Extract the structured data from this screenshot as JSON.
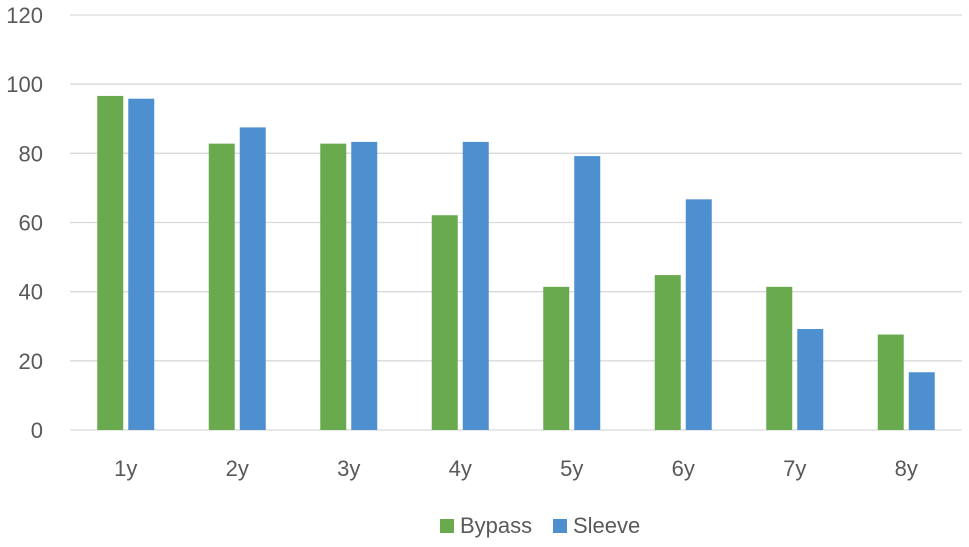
{
  "colors": {
    "bypass": "#6aaa4f",
    "sleeve": "#4e8fcf",
    "grid": "#d9d9d9",
    "axis_text": "#595959"
  },
  "chart_data": {
    "type": "bar",
    "categories": [
      "1y",
      "2y",
      "3y",
      "4y",
      "5y",
      "6y",
      "7y",
      "8y"
    ],
    "series": [
      {
        "name": "Bypass",
        "values": [
          96.6,
          82.8,
          82.8,
          62.1,
          41.4,
          44.8,
          41.4,
          27.6
        ],
        "color": "#6aaa4f"
      },
      {
        "name": "Sleeve",
        "values": [
          95.8,
          87.5,
          83.3,
          83.3,
          79.2,
          66.7,
          29.2,
          16.7
        ],
        "color": "#4e8fcf"
      }
    ],
    "yticks": [
      "0",
      "20",
      "40",
      "60",
      "80",
      "100",
      "120"
    ],
    "ylim": [
      0,
      120
    ],
    "grid": true,
    "legend_position": "bottom-center"
  }
}
